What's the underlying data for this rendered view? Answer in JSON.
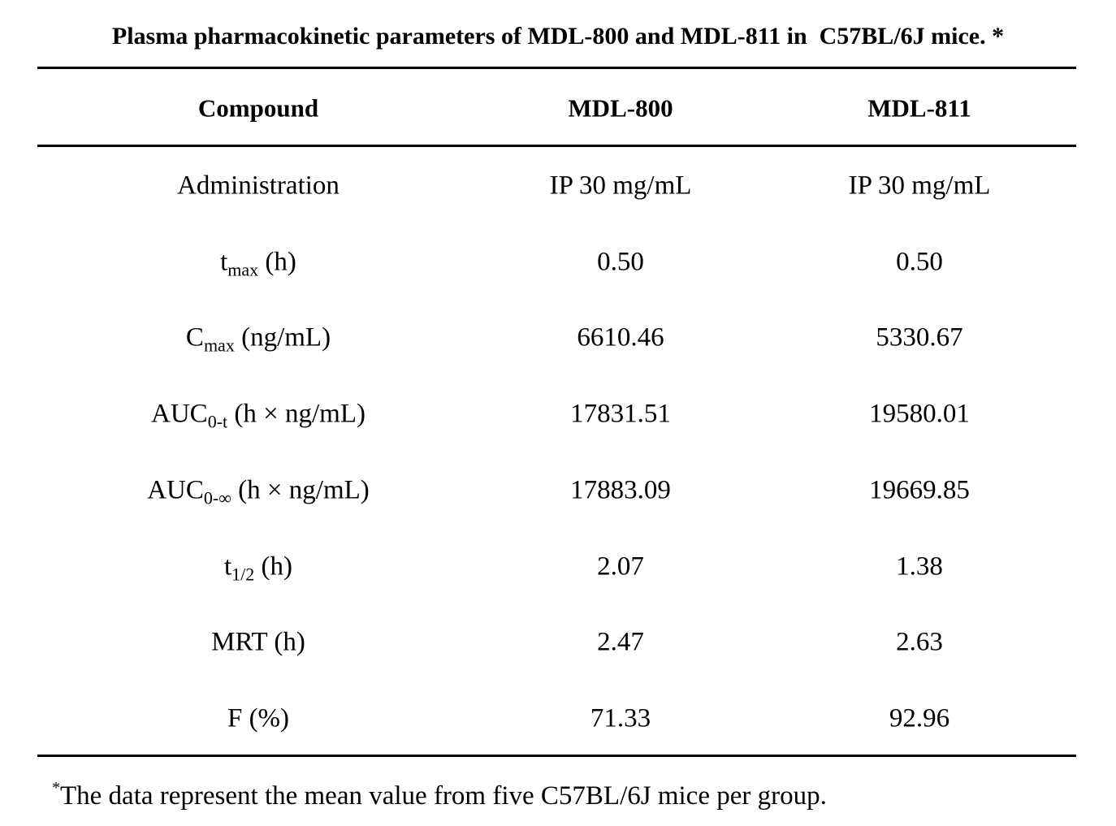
{
  "title": "Plasma pharmacokinetic parameters of MDL-800 and MDL-811 in  C57BL/6J mice. *",
  "table": {
    "header": [
      "Compound",
      "MDL-800",
      "MDL-811"
    ],
    "rows": [
      {
        "parameter": {
          "main": "Administration"
        },
        "values": [
          "IP 30 mg/mL",
          "IP 30 mg/mL"
        ]
      },
      {
        "parameter": {
          "main": "t",
          "sub": "max",
          "unit": " (h)"
        },
        "values": [
          "0.50",
          "0.50"
        ]
      },
      {
        "parameter": {
          "main": "C",
          "sub": "max",
          "unit": " (ng/mL)"
        },
        "values": [
          "6610.46",
          "5330.67"
        ]
      },
      {
        "parameter": {
          "main": "AUC",
          "sub": "0-t",
          "unit": " (h × ng/mL)"
        },
        "values": [
          "17831.51",
          "19580.01"
        ]
      },
      {
        "parameter": {
          "main": "AUC",
          "sub": "0-∞",
          "unit": " (h × ng/mL)"
        },
        "values": [
          "17883.09",
          "19669.85"
        ]
      },
      {
        "parameter": {
          "main": "t",
          "sub": "1/2",
          "unit": " (h)"
        },
        "values": [
          "2.07",
          "1.38"
        ]
      },
      {
        "parameter": {
          "main": "MRT (h)"
        },
        "values": [
          "2.47",
          "2.63"
        ]
      },
      {
        "parameter": {
          "main": "F (%)"
        },
        "values": [
          "71.33",
          "92.96"
        ]
      }
    ]
  },
  "footnote": {
    "mark": "*",
    "text": "The data represent the mean value from five C57BL/6J mice per group."
  }
}
